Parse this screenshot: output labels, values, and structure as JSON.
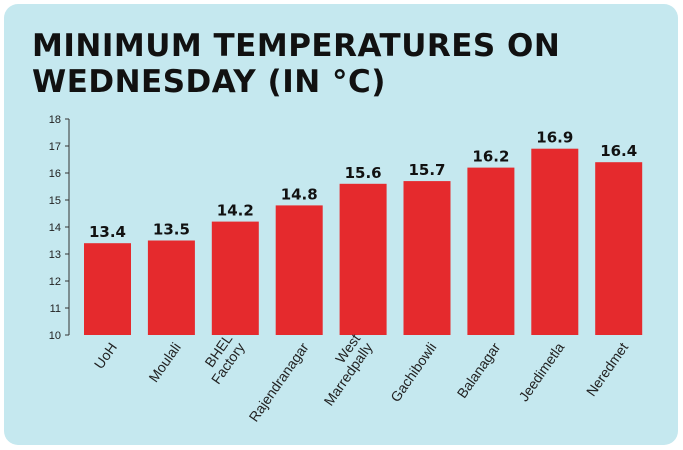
{
  "title_lines": [
    "MINIMUM TEMPERATURES ON",
    "WEDNESDAY (IN °C)"
  ],
  "colors": {
    "background": "#c5e8ef",
    "bar": "#e52a2d",
    "title": "#111111"
  },
  "chart_data": {
    "type": "bar",
    "title": "MINIMUM TEMPERATURES ON WEDNESDAY (IN °C)",
    "xlabel": "",
    "ylabel": "",
    "ylim": [
      10,
      18
    ],
    "yticks": [
      10,
      11,
      12,
      13,
      14,
      15,
      16,
      17,
      18
    ],
    "grid": false,
    "categories": [
      [
        "UoH"
      ],
      [
        "Moulali"
      ],
      [
        "BHEL",
        "Factory"
      ],
      [
        "Rajendranagar"
      ],
      [
        "West",
        "Marredpally"
      ],
      [
        "Gachibowli"
      ],
      [
        "Balanagar"
      ],
      [
        "Jeedimetla"
      ],
      [
        "Neredmet"
      ]
    ],
    "values": [
      13.4,
      13.5,
      14.2,
      14.8,
      15.6,
      15.7,
      16.2,
      16.9,
      16.4
    ],
    "value_labels": [
      "13.4",
      "13.5",
      "14.2",
      "14.8",
      "15.6",
      "15.7",
      "16.2",
      "16.9",
      "16.4"
    ]
  }
}
